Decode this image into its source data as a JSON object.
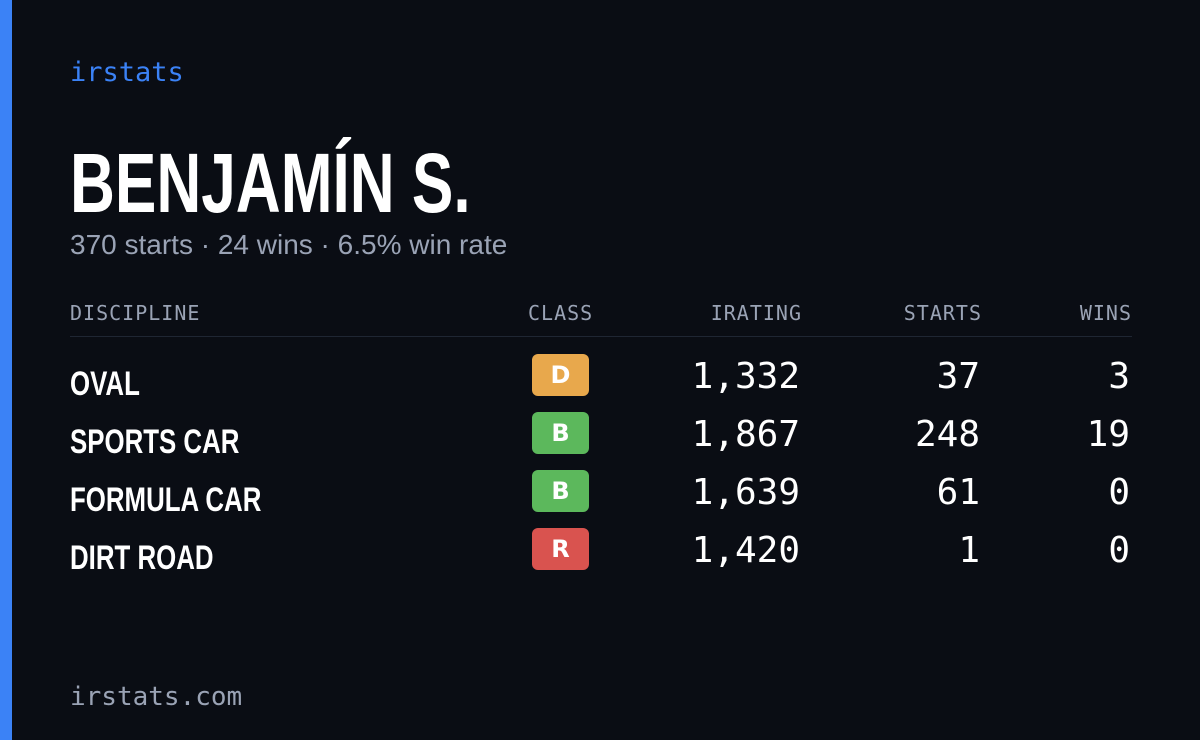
{
  "brand": "irstats",
  "player": {
    "name": "BENJAMÍN S.",
    "summary": "370 starts · 24 wins · 6.5% win rate"
  },
  "table": {
    "headers": {
      "discipline": "DISCIPLINE",
      "class": "CLASS",
      "irating": "IRATING",
      "starts": "STARTS",
      "wins": "WINS"
    },
    "rows": [
      {
        "discipline": "OVAL",
        "class": "D",
        "class_color": "#e8a84c",
        "irating": "1,332",
        "starts": "37",
        "wins": "3"
      },
      {
        "discipline": "SPORTS CAR",
        "class": "B",
        "class_color": "#5cb85c",
        "irating": "1,867",
        "starts": "248",
        "wins": "19"
      },
      {
        "discipline": "FORMULA CAR",
        "class": "B",
        "class_color": "#5cb85c",
        "irating": "1,639",
        "starts": "61",
        "wins": "0"
      },
      {
        "discipline": "DIRT ROAD",
        "class": "R",
        "class_color": "#d9534f",
        "irating": "1,420",
        "starts": "1",
        "wins": "0"
      }
    ]
  },
  "footer": "irstats.com",
  "colors": {
    "accent": "#3b82f6",
    "background": "#0a0d14",
    "muted_text": "#9aa3b5"
  }
}
